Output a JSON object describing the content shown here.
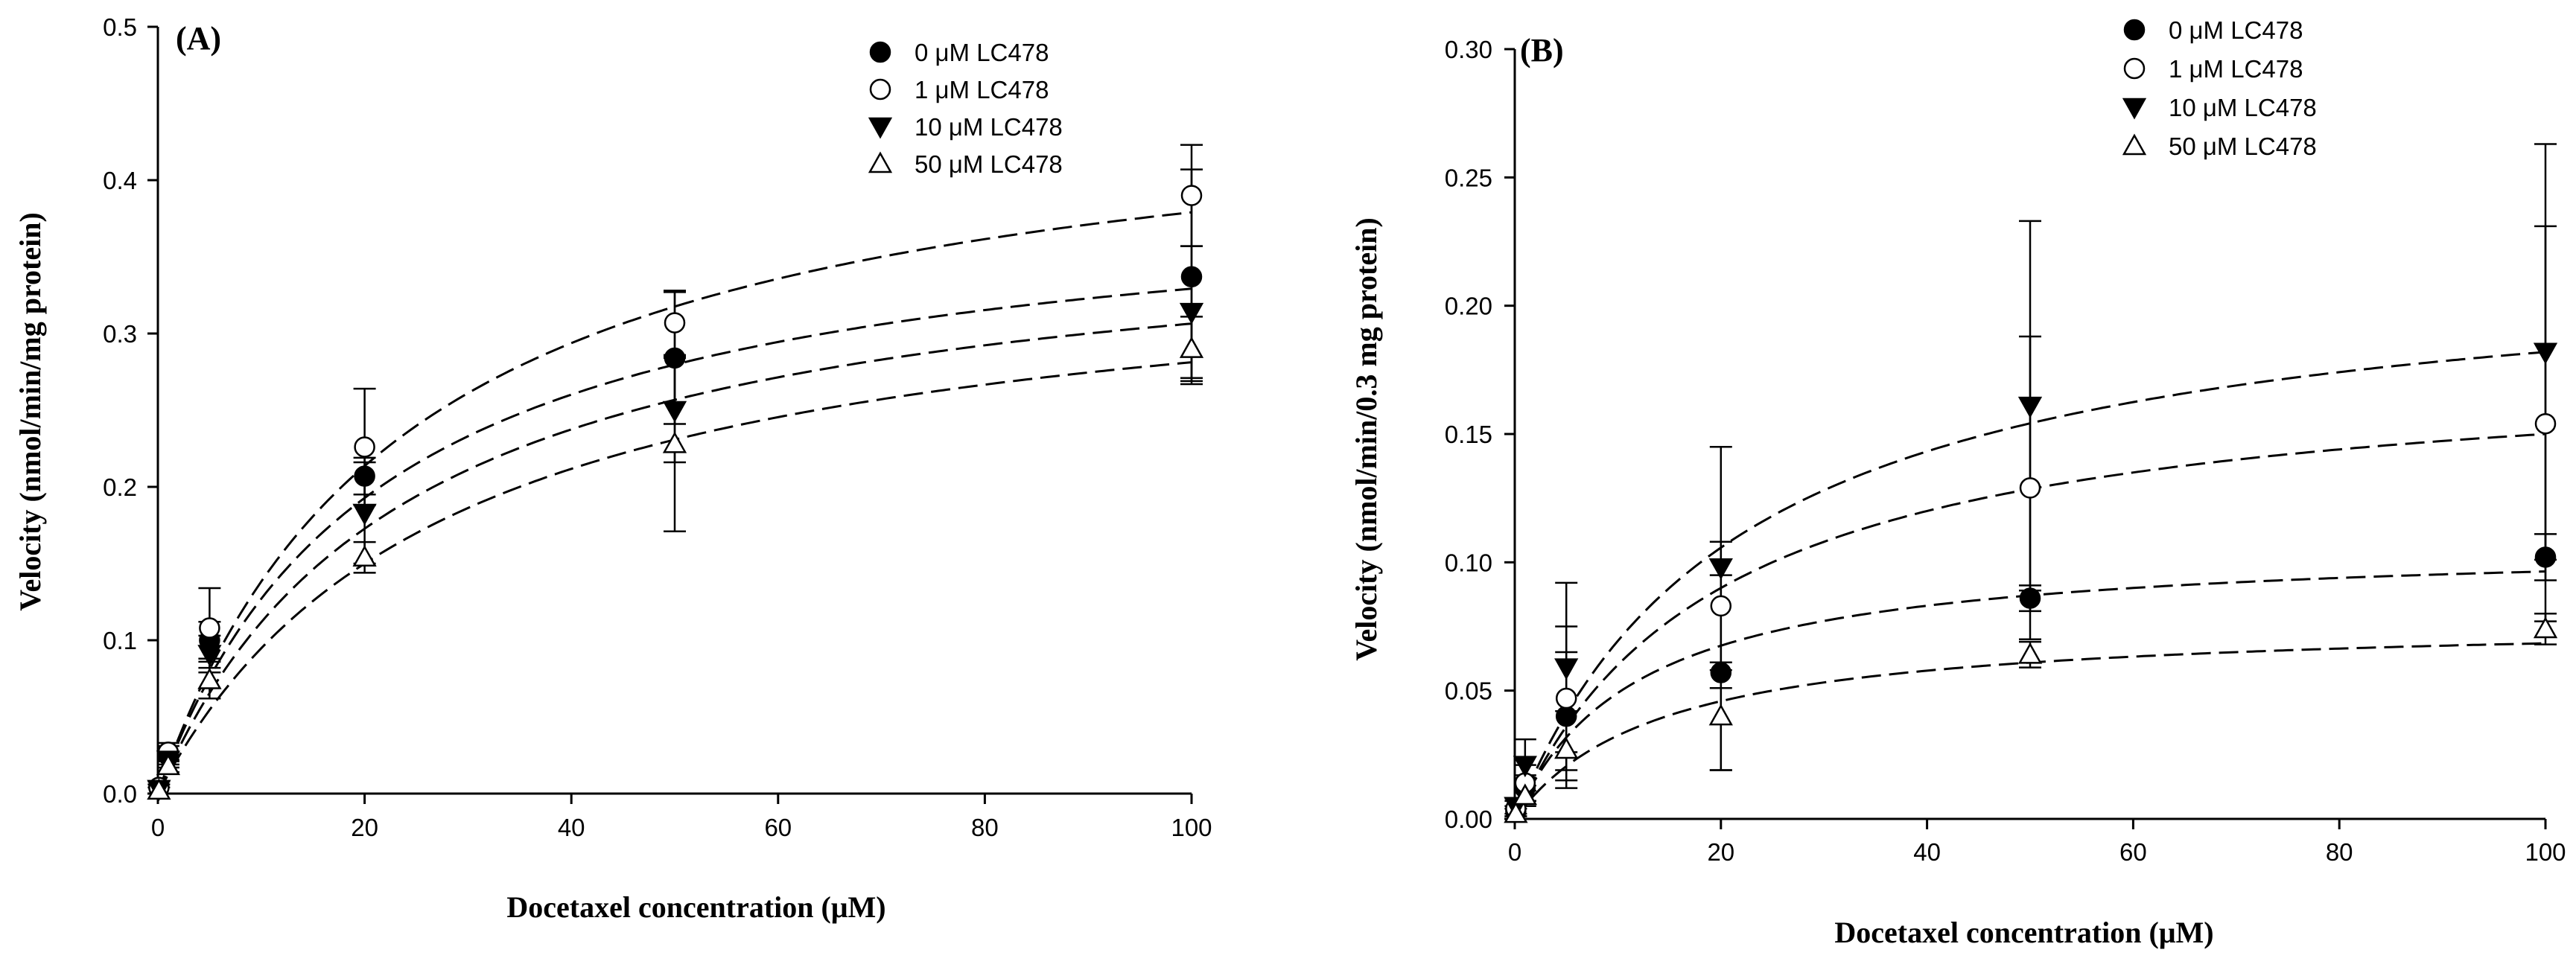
{
  "chart_data": [
    {
      "type": "scatter",
      "panel_label": "(A)",
      "title": "",
      "xlabel": "Docetaxel concentration (μM)",
      "ylabel": "Velocity (nmol/min/mg protein)",
      "xlim": [
        0,
        100
      ],
      "ylim": [
        0,
        0.5
      ],
      "xticks": [
        0,
        20,
        40,
        60,
        80,
        100
      ],
      "yticks": [
        0.0,
        0.1,
        0.2,
        0.3,
        0.4,
        0.5
      ],
      "ytick_labels": [
        "0.0",
        "0.1",
        "0.2",
        "0.3",
        "0.4",
        "0.5"
      ],
      "legend_position": "top-right",
      "series": [
        {
          "name": "0 μM LC478",
          "marker": "filled-circle",
          "x": [
            0.1,
            1,
            5,
            20,
            50,
            100
          ],
          "y": [
            0.004,
            0.025,
            0.1,
            0.207,
            0.284,
            0.337
          ],
          "err": [
            0.004,
            0.006,
            0.012,
            0.012,
            0.043,
            0.07
          ],
          "fit": {
            "vmax": 0.4,
            "km": 21.5
          }
        },
        {
          "name": "1 μM LC478",
          "marker": "open-circle",
          "x": [
            0.1,
            1,
            5,
            20,
            50,
            100
          ],
          "y": [
            0.004,
            0.027,
            0.108,
            0.226,
            0.307,
            0.39
          ],
          "err": [
            0.004,
            0.006,
            0.026,
            0.038,
            0.021,
            0.033
          ],
          "fit": {
            "vmax": 0.47,
            "km": 24
          }
        },
        {
          "name": "10 μM LC478",
          "marker": "filled-triangle-down",
          "x": [
            0.1,
            1,
            5,
            20,
            50,
            100
          ],
          "y": [
            0.003,
            0.022,
            0.091,
            0.183,
            0.25,
            0.314
          ],
          "err": [
            0.003,
            0.005,
            0.012,
            0.033,
            0.034,
            0.043
          ],
          "fit": {
            "vmax": 0.38,
            "km": 24
          }
        },
        {
          "name": "50 μM LC478",
          "marker": "open-triangle-up",
          "x": [
            0.1,
            1,
            5,
            20,
            50,
            100
          ],
          "y": [
            0.002,
            0.018,
            0.074,
            0.154,
            0.228,
            0.29
          ],
          "err": [
            0.002,
            0.004,
            0.012,
            0.01,
            0.057,
            0.021
          ],
          "fit": {
            "vmax": 0.36,
            "km": 28
          }
        }
      ]
    },
    {
      "type": "scatter",
      "panel_label": "(B)",
      "title": "",
      "xlabel": "Docetaxel concentration (μM)",
      "ylabel": "Velocity (nmol/min/0.3 mg protein)",
      "xlim": [
        0,
        100
      ],
      "ylim": [
        0,
        0.3
      ],
      "xticks": [
        0,
        20,
        40,
        60,
        80,
        100
      ],
      "yticks": [
        0.0,
        0.05,
        0.1,
        0.15,
        0.2,
        0.25,
        0.3
      ],
      "ytick_labels": [
        "0.00",
        "0.05",
        "0.10",
        "0.15",
        "0.20",
        "0.25",
        "0.30"
      ],
      "legend_position": "top-right",
      "series": [
        {
          "name": "0 μM LC478",
          "marker": "filled-circle",
          "x": [
            0.1,
            1,
            5,
            20,
            50,
            100
          ],
          "y": [
            0.003,
            0.012,
            0.04,
            0.057,
            0.086,
            0.102
          ],
          "err": [
            0.002,
            0.005,
            0.025,
            0.038,
            0.005,
            0.009
          ],
          "fit": {
            "vmax": 0.108,
            "km": 12
          }
        },
        {
          "name": "1 μM LC478",
          "marker": "open-circle",
          "x": [
            0.1,
            1,
            5,
            20,
            50,
            100
          ],
          "y": [
            0.004,
            0.014,
            0.047,
            0.083,
            0.129,
            0.154
          ],
          "err": [
            0.003,
            0.007,
            0.028,
            0.025,
            0.059,
            0.077
          ],
          "fit": {
            "vmax": 0.18,
            "km": 20
          }
        },
        {
          "name": "10 μM LC478",
          "marker": "filled-triangle-down",
          "x": [
            0.1,
            1,
            5,
            20,
            50,
            100
          ],
          "y": [
            0.005,
            0.021,
            0.059,
            0.098,
            0.161,
            0.182
          ],
          "err": [
            0.003,
            0.01,
            0.033,
            0.047,
            0.072,
            0.081
          ],
          "fit": {
            "vmax": 0.222,
            "km": 22
          }
        },
        {
          "name": "50 μM LC478",
          "marker": "open-triangle-up",
          "x": [
            0.1,
            1,
            5,
            20,
            50,
            100
          ],
          "y": [
            0.002,
            0.009,
            0.027,
            0.04,
            0.064,
            0.074
          ],
          "err": [
            0.002,
            0.004,
            0.015,
            0.021,
            0.005,
            0.006
          ],
          "fit": {
            "vmax": 0.078,
            "km": 14
          }
        }
      ]
    }
  ]
}
